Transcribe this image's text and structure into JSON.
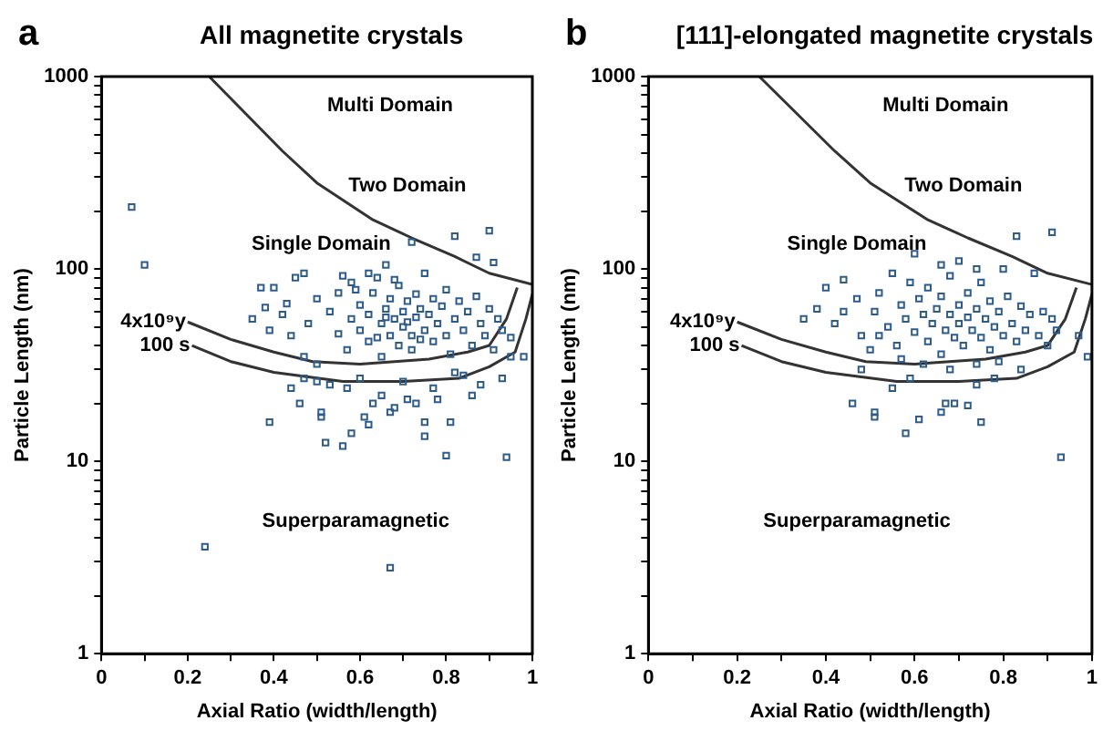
{
  "chart_data": [
    {
      "type": "scatter",
      "title": "All magnetite crystals",
      "xlabel": "Axial Ratio (width/length)",
      "ylabel": "Particle Length (nm)",
      "log": "y",
      "grid": false,
      "xlim": [
        0,
        1
      ],
      "xticks": [
        0,
        {
          "value": 0.1,
          "label": null
        },
        0.2,
        {
          "value": 0.3,
          "label": null
        },
        0.4,
        {
          "value": 0.5,
          "label": null
        },
        0.6,
        {
          "value": 0.7,
          "label": null
        },
        0.8,
        {
          "value": 0.9,
          "label": null
        },
        1
      ],
      "ylim": [
        1,
        1000
      ],
      "yticks": [
        1,
        {
          "value": 2,
          "label": null
        },
        {
          "value": 3,
          "label": null
        },
        {
          "value": 4,
          "label": null
        },
        {
          "value": 5,
          "label": null
        },
        {
          "value": 6,
          "label": null
        },
        {
          "value": 7,
          "label": null
        },
        {
          "value": 8,
          "label": null
        },
        {
          "value": 9,
          "label": null
        },
        10,
        {
          "value": 20,
          "label": null
        },
        {
          "value": 30,
          "label": null
        },
        {
          "value": 40,
          "label": null
        },
        {
          "value": 50,
          "label": null
        },
        {
          "value": 60,
          "label": null
        },
        {
          "value": 70,
          "label": null
        },
        {
          "value": 80,
          "label": null
        },
        {
          "value": 90,
          "label": null
        },
        100,
        {
          "value": 200,
          "label": null
        },
        {
          "value": 300,
          "label": null
        },
        {
          "value": 400,
          "label": null
        },
        {
          "value": 500,
          "label": null
        },
        {
          "value": 600,
          "label": null
        },
        {
          "value": 700,
          "label": null
        },
        {
          "value": 800,
          "label": null
        },
        {
          "value": 900,
          "label": null
        },
        1000
      ],
      "annotations": [
        "a",
        "Multi Domain",
        "Two Domain",
        "Single Domain",
        "Superparamagnetic"
      ],
      "series": [
        {
          "marker": "square",
          "color": "#2e5c8a",
          "x": [
            0.07,
            0.1,
            0.24,
            0.67,
            0.94,
            0.8,
            0.39,
            0.52,
            0.56,
            0.58,
            0.51,
            0.51,
            0.62,
            0.61,
            0.75,
            0.75,
            0.81,
            0.67,
            0.68,
            0.73,
            0.71,
            0.46,
            0.63,
            0.65,
            0.78,
            0.86,
            0.88,
            0.84,
            0.93,
            0.95,
            0.98,
            0.95,
            0.44,
            0.47,
            0.5,
            0.53,
            0.57,
            0.6,
            0.7,
            0.77,
            0.82,
            0.35,
            0.38,
            0.39,
            0.42,
            0.43,
            0.4,
            0.44,
            0.47,
            0.5,
            0.48,
            0.5,
            0.53,
            0.55,
            0.55,
            0.57,
            0.58,
            0.58,
            0.6,
            0.6,
            0.62,
            0.62,
            0.63,
            0.64,
            0.65,
            0.65,
            0.66,
            0.67,
            0.67,
            0.68,
            0.69,
            0.69,
            0.7,
            0.7,
            0.71,
            0.72,
            0.72,
            0.73,
            0.73,
            0.74,
            0.75,
            0.75,
            0.76,
            0.77,
            0.77,
            0.78,
            0.79,
            0.8,
            0.8,
            0.81,
            0.82,
            0.83,
            0.84,
            0.85,
            0.86,
            0.87,
            0.88,
            0.89,
            0.9,
            0.91,
            0.92,
            0.93,
            0.82,
            0.9,
            0.72,
            0.91,
            0.87,
            0.66,
            0.62,
            0.56,
            0.68,
            0.45,
            0.37,
            0.47,
            0.59,
            0.64,
            0.66,
            0.71,
            0.74
          ],
          "values": [
            210,
            105,
            3.6,
            2.8,
            10.5,
            10.7,
            16,
            12.5,
            12,
            14,
            17,
            18,
            15.5,
            17,
            13.5,
            16,
            16,
            18,
            19,
            20,
            21,
            20,
            20,
            22,
            21,
            22,
            25,
            28,
            27,
            35,
            35,
            44,
            24,
            27,
            26,
            25,
            24,
            27,
            26,
            24,
            29,
            55,
            63,
            48,
            58,
            66,
            80,
            45,
            35,
            32,
            52,
            70,
            60,
            46,
            75,
            38,
            55,
            85,
            65,
            48,
            42,
            58,
            75,
            90,
            52,
            35,
            62,
            45,
            70,
            55,
            40,
            82,
            60,
            50,
            68,
            45,
            38,
            56,
            74,
            62,
            48,
            95,
            58,
            42,
            70,
            52,
            64,
            45,
            78,
            36,
            55,
            68,
            48,
            60,
            40,
            72,
            52,
            45,
            62,
            38,
            55,
            48,
            148,
            158,
            138,
            108,
            115,
            105,
            95,
            92,
            88,
            90,
            80,
            95,
            78,
            44,
            56,
            53,
            43
          ]
        },
        {
          "type": "line",
          "color": "#333333",
          "x": [
            0.25,
            0.3,
            0.42,
            0.5,
            0.63,
            0.72,
            0.82,
            0.9,
            1.0
          ],
          "values": [
            1000,
            770,
            410,
            280,
            180,
            145,
            116,
            95,
            83
          ]
        },
        {
          "type": "line",
          "name": "4x10⁹y",
          "color": "#333333",
          "x": [
            0.2,
            0.3,
            0.4,
            0.49,
            0.6,
            0.76,
            0.85,
            0.9,
            0.94,
            0.965
          ],
          "values": [
            53,
            43,
            37,
            33,
            32,
            34,
            37,
            40,
            55,
            80
          ]
        },
        {
          "type": "line",
          "name": "100 s",
          "color": "#333333",
          "x": [
            0.21,
            0.3,
            0.4,
            0.56,
            0.7,
            0.83,
            0.9,
            0.96,
            0.985,
            1.0
          ],
          "values": [
            40,
            33,
            29,
            26,
            26,
            27,
            31,
            37,
            55,
            74
          ]
        }
      ]
    },
    {
      "type": "scatter",
      "title": "[111]-elongated magnetite crystals",
      "xlabel": "Axial Ratio (width/length)",
      "ylabel": "Particle Length (nm)",
      "log": "y",
      "grid": false,
      "xlim": [
        0,
        1
      ],
      "xticks": [
        0,
        {
          "value": 0.1,
          "label": null
        },
        0.2,
        {
          "value": 0.3,
          "label": null
        },
        0.4,
        {
          "value": 0.5,
          "label": null
        },
        0.6,
        {
          "value": 0.7,
          "label": null
        },
        0.8,
        {
          "value": 0.9,
          "label": null
        },
        1
      ],
      "ylim": [
        1,
        1000
      ],
      "yticks": [
        1,
        {
          "value": 2,
          "label": null
        },
        {
          "value": 3,
          "label": null
        },
        {
          "value": 4,
          "label": null
        },
        {
          "value": 5,
          "label": null
        },
        {
          "value": 6,
          "label": null
        },
        {
          "value": 7,
          "label": null
        },
        {
          "value": 8,
          "label": null
        },
        {
          "value": 9,
          "label": null
        },
        10,
        {
          "value": 20,
          "label": null
        },
        {
          "value": 30,
          "label": null
        },
        {
          "value": 40,
          "label": null
        },
        {
          "value": 50,
          "label": null
        },
        {
          "value": 60,
          "label": null
        },
        {
          "value": 70,
          "label": null
        },
        {
          "value": 80,
          "label": null
        },
        {
          "value": 90,
          "label": null
        },
        100,
        {
          "value": 200,
          "label": null
        },
        {
          "value": 300,
          "label": null
        },
        {
          "value": 400,
          "label": null
        },
        {
          "value": 500,
          "label": null
        },
        {
          "value": 600,
          "label": null
        },
        {
          "value": 700,
          "label": null
        },
        {
          "value": 800,
          "label": null
        },
        {
          "value": 900,
          "label": null
        },
        1000
      ],
      "annotations": [
        "b",
        "Multi Domain",
        "Two Domain",
        "Single Domain",
        "Superparamagnetic"
      ],
      "series": [
        {
          "marker": "square",
          "color": "#2e5c8a",
          "x": [
            0.93,
            0.58,
            0.61,
            0.66,
            0.75,
            0.51,
            0.51,
            0.46,
            0.67,
            0.69,
            0.72,
            0.55,
            0.59,
            0.74,
            0.78,
            0.84,
            0.99,
            0.97,
            0.35,
            0.38,
            0.4,
            0.42,
            0.44,
            0.44,
            0.47,
            0.48,
            0.5,
            0.51,
            0.52,
            0.54,
            0.55,
            0.56,
            0.57,
            0.58,
            0.59,
            0.6,
            0.61,
            0.62,
            0.63,
            0.63,
            0.64,
            0.65,
            0.66,
            0.66,
            0.67,
            0.68,
            0.68,
            0.69,
            0.7,
            0.7,
            0.71,
            0.72,
            0.72,
            0.73,
            0.74,
            0.75,
            0.75,
            0.76,
            0.77,
            0.77,
            0.78,
            0.79,
            0.8,
            0.81,
            0.82,
            0.83,
            0.84,
            0.85,
            0.86,
            0.88,
            0.89,
            0.9,
            0.91,
            0.92,
            0.83,
            0.91,
            0.74,
            0.7,
            0.66,
            0.6,
            0.8,
            0.87,
            0.52,
            0.62,
            0.68,
            0.74,
            0.79,
            0.57,
            0.48
          ],
          "values": [
            10.5,
            14,
            16.5,
            18,
            16,
            17,
            18,
            20,
            20,
            20,
            19.5,
            24,
            27,
            25,
            27,
            30,
            35,
            45,
            55,
            62,
            80,
            52,
            60,
            88,
            70,
            45,
            38,
            60,
            75,
            50,
            95,
            40,
            65,
            55,
            85,
            47,
            70,
            58,
            42,
            80,
            52,
            62,
            36,
            72,
            48,
            58,
            92,
            44,
            65,
            52,
            40,
            56,
            75,
            48,
            62,
            44,
            85,
            55,
            38,
            68,
            50,
            60,
            45,
            72,
            52,
            42,
            64,
            48,
            58,
            45,
            60,
            40,
            55,
            48,
            148,
            155,
            100,
            110,
            105,
            120,
            100,
            95,
            45,
            32,
            30,
            32,
            33,
            34,
            30
          ]
        },
        {
          "type": "line",
          "color": "#333333",
          "x": [
            0.25,
            0.3,
            0.42,
            0.5,
            0.63,
            0.72,
            0.82,
            0.9,
            1.0
          ],
          "values": [
            1000,
            770,
            410,
            280,
            180,
            145,
            116,
            95,
            83
          ]
        },
        {
          "type": "line",
          "name": "4x10⁹y",
          "color": "#333333",
          "x": [
            0.2,
            0.3,
            0.4,
            0.49,
            0.6,
            0.76,
            0.85,
            0.9,
            0.94,
            0.965
          ],
          "values": [
            53,
            43,
            37,
            33,
            32,
            34,
            37,
            40,
            55,
            80
          ]
        },
        {
          "type": "line",
          "name": "100 s",
          "color": "#333333",
          "x": [
            0.21,
            0.3,
            0.4,
            0.56,
            0.7,
            0.83,
            0.9,
            0.96,
            0.985,
            1.0
          ],
          "values": [
            40,
            33,
            29,
            26,
            26,
            27,
            31,
            37,
            55,
            74
          ]
        }
      ]
    }
  ]
}
